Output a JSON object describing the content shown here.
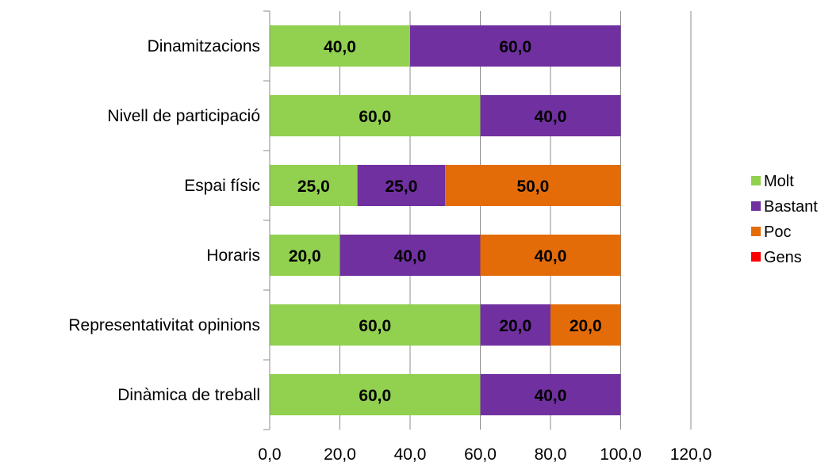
{
  "chart_data": {
    "type": "bar",
    "orientation": "horizontal",
    "stacked": true,
    "categories": [
      "Dinamitzacions",
      "Nivell de participació",
      "Espai físic",
      "Horaris",
      "Representativitat opinions",
      "Dinàmica de treball"
    ],
    "series": [
      {
        "name": "Molt",
        "color": "#92D050",
        "values": [
          40,
          60,
          25,
          20,
          60,
          60
        ]
      },
      {
        "name": "Bastant",
        "color": "#7030A0",
        "values": [
          60,
          40,
          25,
          40,
          20,
          40
        ]
      },
      {
        "name": "Poc",
        "color": "#E36C09",
        "values": [
          0,
          0,
          50,
          40,
          20,
          0
        ]
      },
      {
        "name": "Gens",
        "color": "#FF0000",
        "values": [
          0,
          0,
          0,
          0,
          0,
          0
        ]
      }
    ],
    "xlim": [
      0,
      120
    ],
    "xticks": [
      0,
      20,
      40,
      60,
      80,
      100,
      120
    ],
    "tick_labels": [
      "0,0",
      "20,0",
      "40,0",
      "60,0",
      "80,0",
      "100,0",
      "120,0"
    ],
    "grid": "vertical",
    "legend_position": "right",
    "title": "",
    "xlabel": "",
    "ylabel": ""
  }
}
